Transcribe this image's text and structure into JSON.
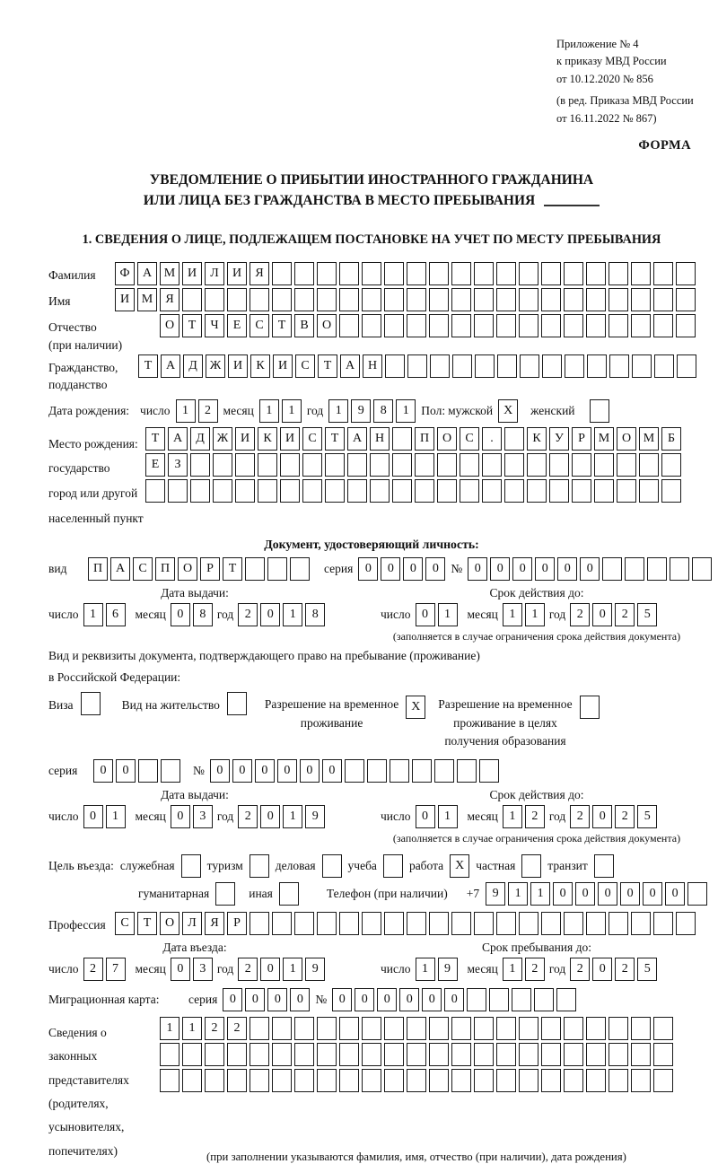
{
  "meta": {
    "note_lines": [
      "Приложение № 4",
      "к приказу МВД России",
      "от 10.12.2020 № 856",
      "(в ред. Приказа МВД России",
      "от 16.11.2022 № 867)"
    ],
    "forma": "ФОРМА"
  },
  "title": {
    "line1": "УВЕДОМЛЕНИЕ О ПРИБЫТИИ ИНОСТРАННОГО ГРАЖДАНИНА",
    "line2": "ИЛИ ЛИЦА БЕЗ ГРАЖДАНСТВА В МЕСТО ПРЕБЫВАНИЯ"
  },
  "section1_title": "1. СВЕДЕНИЯ О ЛИЦЕ, ПОДЛЕЖАЩЕМ ПОСТАНОВКЕ НА УЧЕТ ПО МЕСТУ ПРЕБЫВАНИЯ",
  "labels": {
    "day": "число",
    "month": "месяц",
    "year": "год",
    "series": "серия",
    "number": "№"
  },
  "person": {
    "surname": {
      "label": "Фамилия",
      "cells": {
        "v": "ФАМИЛИЯ",
        "n": 26
      }
    },
    "firstname": {
      "label": "Имя",
      "cells": {
        "v": "ИМЯ",
        "n": 26
      }
    },
    "patronymic": {
      "label": "Отчество",
      "sublabel": "(при наличии)",
      "cells": {
        "v": "ОТЧЕСТВО",
        "n": 24
      }
    },
    "citizenship": {
      "label": "Гражданство,",
      "sublabel": "подданство",
      "cells": {
        "v": "ТАДЖИКИСТАН",
        "n": 25
      }
    },
    "birth_date": {
      "label": "Дата рождения:",
      "day": {
        "v": "12",
        "n": 2
      },
      "month": {
        "v": "11",
        "n": 2
      },
      "year": {
        "v": "1981",
        "n": 4
      }
    },
    "sex": {
      "label": "Пол:",
      "male_label": "мужской",
      "male_box": {
        "v": "X",
        "n": 1
      },
      "female_label": "женский",
      "female_box": {
        "v": "",
        "n": 1
      }
    },
    "birth_place": {
      "label1": "Место рождения:",
      "label2": "государство",
      "label3": "город или другой",
      "label4": "населенный пункт",
      "row1": {
        "v": "ТАДЖИКИСТАН ПОС. КУРМОМБ",
        "n": 24
      },
      "row2": {
        "v": "ЕЗ",
        "n": 24
      },
      "row3": {
        "v": "",
        "n": 24
      }
    }
  },
  "identity_doc": {
    "title": "Документ, удостоверяющий личность:",
    "kind_label": "вид",
    "kind": {
      "v": "ПАСПОРТ",
      "n": 10
    },
    "series": {
      "v": "0000",
      "n": 4
    },
    "number": {
      "v": "000000",
      "n": 11
    },
    "issue_title": "Дата выдачи:",
    "issue": {
      "day": {
        "v": "16",
        "n": 2
      },
      "month": {
        "v": "08",
        "n": 2
      },
      "year": {
        "v": "2018",
        "n": 4
      }
    },
    "valid_title": "Срок действия до:",
    "valid": {
      "day": {
        "v": "01",
        "n": 2
      },
      "month": {
        "v": "11",
        "n": 2
      },
      "year": {
        "v": "2025",
        "n": 4
      }
    },
    "note": "(заполняется в случае ограничения срока действия документа)"
  },
  "residence_doc": {
    "intro1": "Вид и реквизиты документа, подтверждающего право на пребывание (проживание)",
    "intro2": "в Российской Федерации:",
    "options": [
      {
        "label1": "Виза",
        "label2": "",
        "label3": "",
        "box": {
          "v": "",
          "n": 1
        }
      },
      {
        "label1": "Вид на жительство",
        "label2": "",
        "label3": "",
        "box": {
          "v": "",
          "n": 1
        }
      },
      {
        "label1": "Разрешение на временное",
        "label2": "проживание",
        "label3": "",
        "box": {
          "v": "X",
          "n": 1
        }
      },
      {
        "label1": "Разрешение на временное",
        "label2": "проживание в целях",
        "label3": "получения образования",
        "box": {
          "v": "",
          "n": 1
        }
      }
    ],
    "series": {
      "v": "00",
      "n": 4
    },
    "number": {
      "v": "000000",
      "n": 13
    },
    "issue_title": "Дата выдачи:",
    "issue": {
      "day": {
        "v": "01",
        "n": 2
      },
      "month": {
        "v": "03",
        "n": 2
      },
      "year": {
        "v": "2019",
        "n": 4
      }
    },
    "valid_title": "Срок действия до:",
    "valid": {
      "day": {
        "v": "01",
        "n": 2
      },
      "month": {
        "v": "12",
        "n": 2
      },
      "year": {
        "v": "2025",
        "n": 4
      }
    },
    "note": "(заполняется в случае ограничения срока действия документа)"
  },
  "purpose": {
    "label": "Цель въезда:",
    "options": [
      {
        "label": "служебная",
        "box": {
          "v": "",
          "n": 1
        }
      },
      {
        "label": "туризм",
        "box": {
          "v": "",
          "n": 1
        }
      },
      {
        "label": "деловая",
        "box": {
          "v": "",
          "n": 1
        }
      },
      {
        "label": "учеба",
        "box": {
          "v": "",
          "n": 1
        }
      },
      {
        "label": "работа",
        "box": {
          "v": "X",
          "n": 1
        }
      },
      {
        "label": "частная",
        "box": {
          "v": "",
          "n": 1
        }
      },
      {
        "label": "транзит",
        "box": {
          "v": "",
          "n": 1
        }
      },
      {
        "label": "гуманитарная",
        "box": {
          "v": "",
          "n": 1
        }
      },
      {
        "label": "иная",
        "box": {
          "v": "",
          "n": 1
        }
      }
    ],
    "phone_label": "Телефон (при наличии)",
    "phone_prefix": "+7",
    "phone": {
      "v": "911000000",
      "n": 10
    }
  },
  "profession": {
    "label": "Профессия",
    "cells": {
      "v": "СТОЛЯР",
      "n": 26
    }
  },
  "entry": {
    "entry_title": "Дата въезда:",
    "entry": {
      "day": {
        "v": "27",
        "n": 2
      },
      "month": {
        "v": "03",
        "n": 2
      },
      "year": {
        "v": "2019",
        "n": 4
      }
    },
    "stay_title": "Срок пребывания до:",
    "stay": {
      "day": {
        "v": "19",
        "n": 2
      },
      "month": {
        "v": "12",
        "n": 2
      },
      "year": {
        "v": "2025",
        "n": 4
      }
    }
  },
  "migration_card": {
    "label": "Миграционная карта:",
    "series": {
      "v": "0000",
      "n": 4
    },
    "number": {
      "v": "000000",
      "n": 11
    }
  },
  "representatives": {
    "label_lines": [
      "Сведения о",
      "законных",
      "представителях",
      "(родителях,",
      "усыновителях,",
      "попечителях)"
    ],
    "row1": {
      "v": "1122",
      "n": 23
    },
    "row2": {
      "v": "",
      "n": 23
    },
    "row3": {
      "v": "",
      "n": 23
    },
    "note": "(при заполнении указываются фамилия, имя, отчество (при наличии), дата рождения)"
  }
}
